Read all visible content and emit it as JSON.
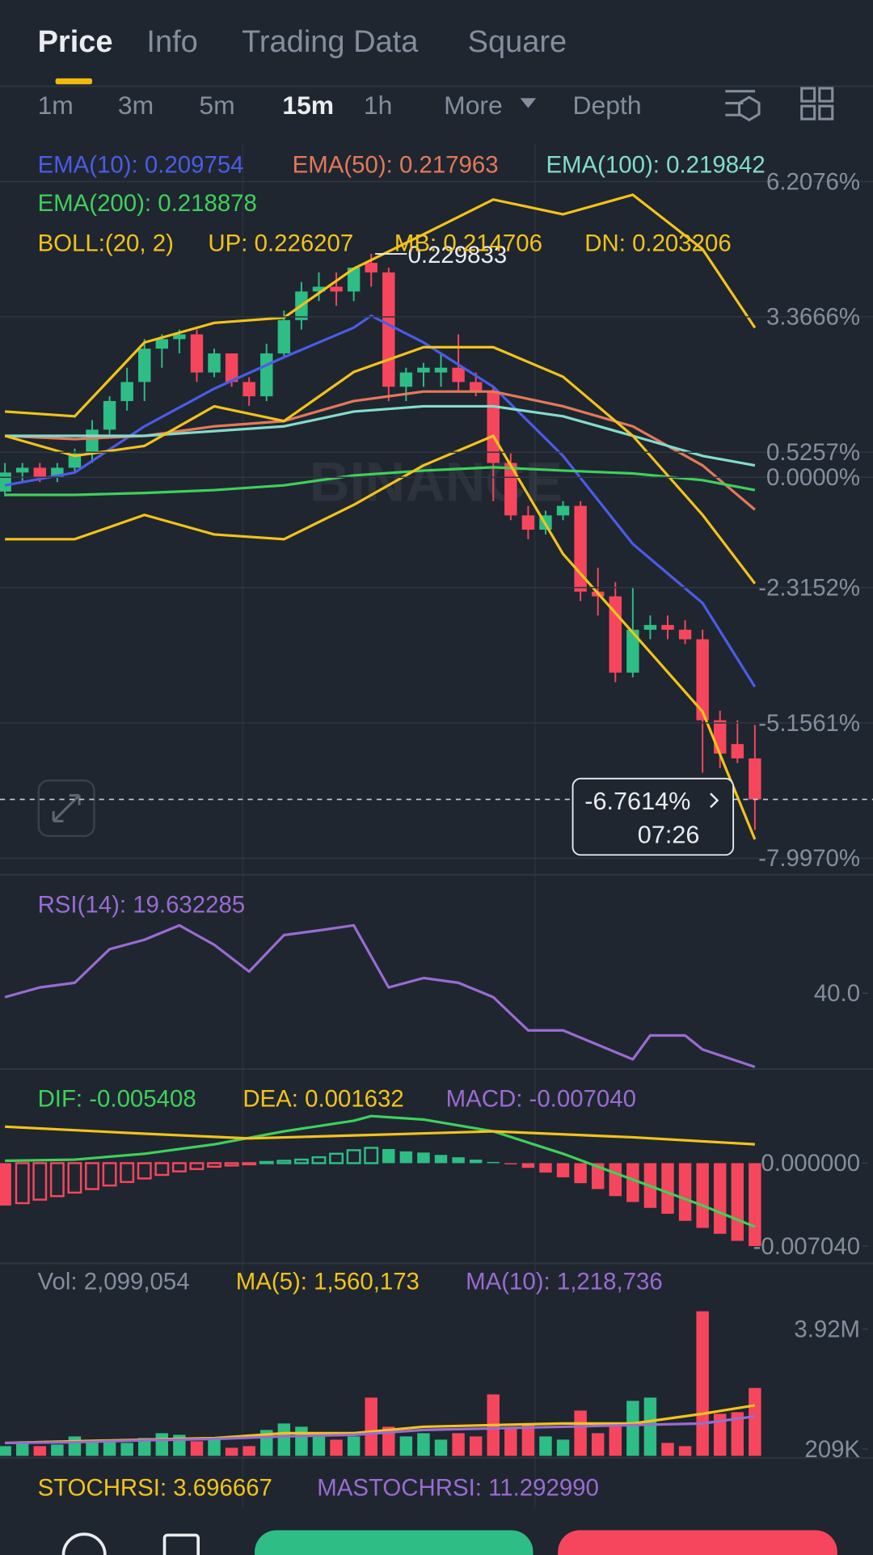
{
  "tabs": [
    "Price",
    "Info",
    "Trading Data",
    "Square"
  ],
  "active_tab": 0,
  "intervals": [
    "1m",
    "3m",
    "5m",
    "15m",
    "1h",
    "More",
    "Depth"
  ],
  "active_interval": 3,
  "chart_data": [
    {
      "type": "candlestick",
      "up_color": "#2ebd85",
      "down_color": "#f6465d",
      "grid": true,
      "ylim": [
        -8.3,
        7.0
      ],
      "yticks": [
        {
          "value": 6.2076,
          "label": "6.2076%"
        },
        {
          "value": 3.3666,
          "label": "3.3666%"
        },
        {
          "value": 0.5257,
          "label": "0.5257%"
        },
        {
          "value": 0,
          "label": "0.0000%"
        },
        {
          "value": -2.3152,
          "label": "-2.3152%"
        },
        {
          "value": -5.1561,
          "label": "-5.1561%"
        },
        {
          "value": -7.997,
          "label": "-7.9970%"
        }
      ],
      "open": [
        -0.3,
        0.1,
        0.2,
        0.0,
        0.2,
        0.5,
        1.0,
        1.6,
        2.0,
        2.7,
        2.9,
        3.0,
        2.2,
        2.6,
        2.0,
        1.7,
        2.6,
        3.3,
        3.9,
        4.0,
        3.9,
        4.5,
        4.3,
        1.9,
        2.2,
        2.2,
        2.3,
        2.0,
        1.8,
        0.3,
        -0.8,
        -1.1,
        -0.8,
        -0.6,
        -2.4,
        -2.5,
        -4.1,
        -3.2,
        -3.1,
        -3.2,
        -3.4,
        -5.1,
        -5.6,
        -5.9
      ],
      "high": [
        0.3,
        0.3,
        0.3,
        0.3,
        0.6,
        1.2,
        1.7,
        2.3,
        2.9,
        3.0,
        3.1,
        3.1,
        2.7,
        2.6,
        2.1,
        2.8,
        3.5,
        4.1,
        4.3,
        4.3,
        4.4,
        4.69,
        4.4,
        2.3,
        2.4,
        2.6,
        3.0,
        2.2,
        1.9,
        0.5,
        -0.6,
        -0.7,
        -0.5,
        -0.5,
        -1.9,
        -2.2,
        -2.3,
        -2.9,
        -2.9,
        -3.0,
        -3.2,
        -4.9,
        -5.1,
        -5.2
      ],
      "low": [
        -0.4,
        -0.1,
        -0.1,
        -0.1,
        0.1,
        0.3,
        0.9,
        1.4,
        1.6,
        2.3,
        2.6,
        2.0,
        2.1,
        1.9,
        1.5,
        1.6,
        2.5,
        3.1,
        3.7,
        3.6,
        3.7,
        4.0,
        1.6,
        1.6,
        1.9,
        1.9,
        1.8,
        1.7,
        -0.5,
        -0.9,
        -1.3,
        -1.2,
        -0.9,
        -2.6,
        -2.9,
        -4.3,
        -4.2,
        -3.4,
        -3.4,
        -3.5,
        -6.2,
        -6.1,
        -6.0,
        -7.4
      ],
      "close": [
        0.1,
        0.2,
        0.0,
        0.2,
        0.5,
        1.0,
        1.6,
        2.0,
        2.7,
        2.9,
        3.0,
        2.2,
        2.6,
        2.0,
        1.7,
        2.6,
        3.3,
        3.9,
        4.0,
        3.9,
        4.4,
        4.3,
        1.9,
        2.2,
        2.3,
        2.3,
        2.0,
        1.8,
        0.3,
        -0.8,
        -1.1,
        -0.8,
        -0.6,
        -2.4,
        -2.5,
        -4.1,
        -3.2,
        -3.1,
        -3.2,
        -3.4,
        -5.1,
        -5.8,
        -5.9,
        -6.7614
      ],
      "series": [
        {
          "name": "EMA(10): 0.209754",
          "color": "#4b5ce6",
          "x": [
            0,
            4,
            8,
            12,
            16,
            20,
            21,
            24,
            28,
            32,
            36,
            40,
            43
          ],
          "values": [
            -0.17,
            0.1,
            1.07,
            1.86,
            2.52,
            3.14,
            3.39,
            2.83,
            1.9,
            0.45,
            -1.4,
            -2.64,
            -4.4
          ]
        },
        {
          "name": "EMA(50): 0.217963",
          "color": "#e3795a",
          "x": [
            0,
            4,
            8,
            12,
            16,
            20,
            24,
            28,
            32,
            36,
            40,
            43
          ],
          "values": [
            0.87,
            0.8,
            0.87,
            1.07,
            1.18,
            1.6,
            1.8,
            1.8,
            1.49,
            1.07,
            0.25,
            -0.68
          ]
        },
        {
          "name": "EMA(100): 0.219842",
          "color": "#84dccb",
          "x": [
            0,
            4,
            8,
            12,
            16,
            20,
            24,
            28,
            32,
            36,
            40,
            43
          ],
          "values": [
            0.87,
            0.87,
            0.87,
            0.97,
            1.07,
            1.38,
            1.49,
            1.49,
            1.28,
            0.87,
            0.45,
            0.25
          ]
        },
        {
          "name": "EMA(200): 0.218878",
          "color": "#3fd05b",
          "x": [
            0,
            4,
            8,
            12,
            16,
            20,
            24,
            28,
            32,
            36,
            40,
            43
          ],
          "values": [
            -0.37,
            -0.37,
            -0.33,
            -0.27,
            -0.17,
            0.04,
            0.14,
            0.21,
            0.14,
            0.08,
            -0.06,
            -0.27
          ]
        },
        {
          "name": "UP: 0.226207",
          "color": "#f2c31a",
          "x": [
            0,
            4,
            8,
            12,
            16,
            20,
            24,
            28,
            32,
            36,
            40,
            43
          ],
          "values": [
            1.38,
            1.28,
            2.83,
            3.24,
            3.35,
            4.38,
            5.1,
            5.83,
            5.52,
            5.93,
            4.79,
            3.14
          ]
        },
        {
          "name": "MB: 0.214706",
          "color": "#f2c31a",
          "x": [
            0,
            4,
            8,
            12,
            16,
            20,
            24,
            28,
            32,
            36,
            40,
            43
          ],
          "values": [
            0.87,
            0.45,
            0.66,
            1.49,
            1.18,
            2.21,
            2.73,
            2.73,
            2.11,
            0.87,
            -0.79,
            -2.23
          ]
        },
        {
          "name": "DN: 0.203206",
          "color": "#f2c31a",
          "x": [
            0,
            4,
            8,
            12,
            16,
            20,
            24,
            28,
            32,
            36,
            40,
            43
          ],
          "values": [
            -1.3,
            -1.3,
            -0.79,
            -1.2,
            -1.3,
            -0.58,
            0.25,
            0.87,
            -1.61,
            -3.26,
            -4.92,
            -7.6
          ]
        }
      ],
      "boll_label": "BOLL:(20, 2)",
      "high_label": "0.229833",
      "current": {
        "value": -6.7614,
        "label": "-6.7614%"
      },
      "countdown": "07:26",
      "watermark": "BINANCE"
    },
    {
      "type": "line",
      "ylim": [
        19,
        72
      ],
      "yticks": [
        {
          "value": 40,
          "label": "40.0"
        }
      ],
      "series": [
        {
          "name": "RSI(14): 19.632285",
          "color": "#9a6cd1",
          "x": [
            0,
            2,
            4,
            6,
            8,
            10,
            12,
            14,
            16,
            18,
            20,
            22,
            24,
            26,
            28,
            30,
            32,
            34,
            36,
            37,
            39,
            40,
            43
          ],
          "values": [
            38.9,
            41.6,
            42.9,
            52.2,
            54.8,
            58.8,
            53.4,
            46.0,
            56.1,
            57.4,
            58.8,
            41.6,
            44.2,
            42.9,
            38.9,
            29.7,
            29.7,
            25.7,
            21.7,
            28.3,
            28.3,
            24.4,
            19.6
          ]
        }
      ]
    },
    {
      "type": "histogram",
      "up_color": "#2ebd85",
      "down_color": "#f6465d",
      "ylim": [
        -0.0086,
        0.0074
      ],
      "yticks": [
        {
          "value": 0,
          "label": "0.000000"
        },
        {
          "value": -0.00704,
          "label": "-0.007040"
        }
      ],
      "series": [
        {
          "name": "DIF: -0.005408",
          "color": "#3fd05b",
          "x": [
            0,
            4,
            8,
            12,
            16,
            20,
            21,
            24,
            28,
            32,
            36,
            40,
            43
          ],
          "values": [
            0.0002,
            0.0003,
            0.0008,
            0.0016,
            0.0027,
            0.0036,
            0.004,
            0.0037,
            0.0027,
            0.0008,
            -0.0014,
            -0.0036,
            -0.0054
          ]
        },
        {
          "name": "DEA: 0.001632",
          "color": "#f2c31a",
          "x": [
            0,
            8,
            14,
            21,
            28,
            36,
            43
          ],
          "values": [
            0.0031,
            0.0025,
            0.0021,
            0.0024,
            0.0027,
            0.0022,
            0.0016
          ]
        },
        {
          "name": "MACD: -0.007040",
          "color": "#9a6cd1",
          "values": [
            -0.0036,
            -0.0034,
            -0.0031,
            -0.0028,
            -0.0025,
            -0.0022,
            -0.0019,
            -0.0016,
            -0.0013,
            -0.001,
            -0.0007,
            -0.0005,
            -0.0003,
            -0.0002,
            -0.0001,
            0.0001,
            0.0002,
            0.0003,
            0.0005,
            0.0008,
            0.0011,
            0.0013,
            0.0012,
            0.001,
            0.0009,
            0.0007,
            0.0005,
            0.0003,
            0.0001,
            -0.0001,
            -0.0004,
            -0.0008,
            -0.0012,
            -0.0017,
            -0.0022,
            -0.0028,
            -0.0033,
            -0.0038,
            -0.0043,
            -0.0049,
            -0.0055,
            -0.006,
            -0.0066,
            -0.00704
          ]
        }
      ]
    },
    {
      "type": "volume",
      "up_color": "#2ebd85",
      "down_color": "#f6465d",
      "ylim": [
        0,
        4600000
      ],
      "yticks": [
        {
          "value": 3920000,
          "label": "3.92M"
        },
        {
          "value": 209000,
          "label": "209K"
        }
      ],
      "series": [
        {
          "name": "Vol: 2,099,054",
          "color": "#848e9c",
          "values": [
            300000,
            450000,
            300000,
            350000,
            600000,
            450000,
            500000,
            400000,
            550000,
            700000,
            650000,
            450000,
            500000,
            250000,
            300000,
            800000,
            1000000,
            900000,
            700000,
            500000,
            600000,
            1800000,
            900000,
            600000,
            700000,
            500000,
            700000,
            600000,
            1900000,
            900000,
            1000000,
            600000,
            500000,
            1400000,
            700000,
            900000,
            1700000,
            1800000,
            400000,
            300000,
            4470000,
            1300000,
            1350000,
            2099054
          ]
        },
        {
          "name": "MA(5): 1,560,173",
          "color": "#f2c31a",
          "x": [
            0,
            4,
            8,
            12,
            16,
            20,
            24,
            28,
            32,
            36,
            40,
            43
          ],
          "values": [
            400000,
            450000,
            500000,
            550000,
            700000,
            700000,
            900000,
            950000,
            1000000,
            1000000,
            1300000,
            1560000
          ]
        },
        {
          "name": "MA(10): 1,218,736",
          "color": "#9a6cd1",
          "x": [
            0,
            4,
            8,
            12,
            16,
            20,
            24,
            28,
            32,
            36,
            40,
            43
          ],
          "values": [
            400000,
            420000,
            480000,
            520000,
            600000,
            650000,
            800000,
            850000,
            900000,
            950000,
            1000000,
            1220000
          ]
        }
      ]
    }
  ],
  "stochrsi": [
    {
      "name": "STOCHRSI: 3.696667",
      "color": "#f2c31a"
    },
    {
      "name": "MASTOCHRSI: 11.292990",
      "color": "#9a6cd1"
    }
  ]
}
